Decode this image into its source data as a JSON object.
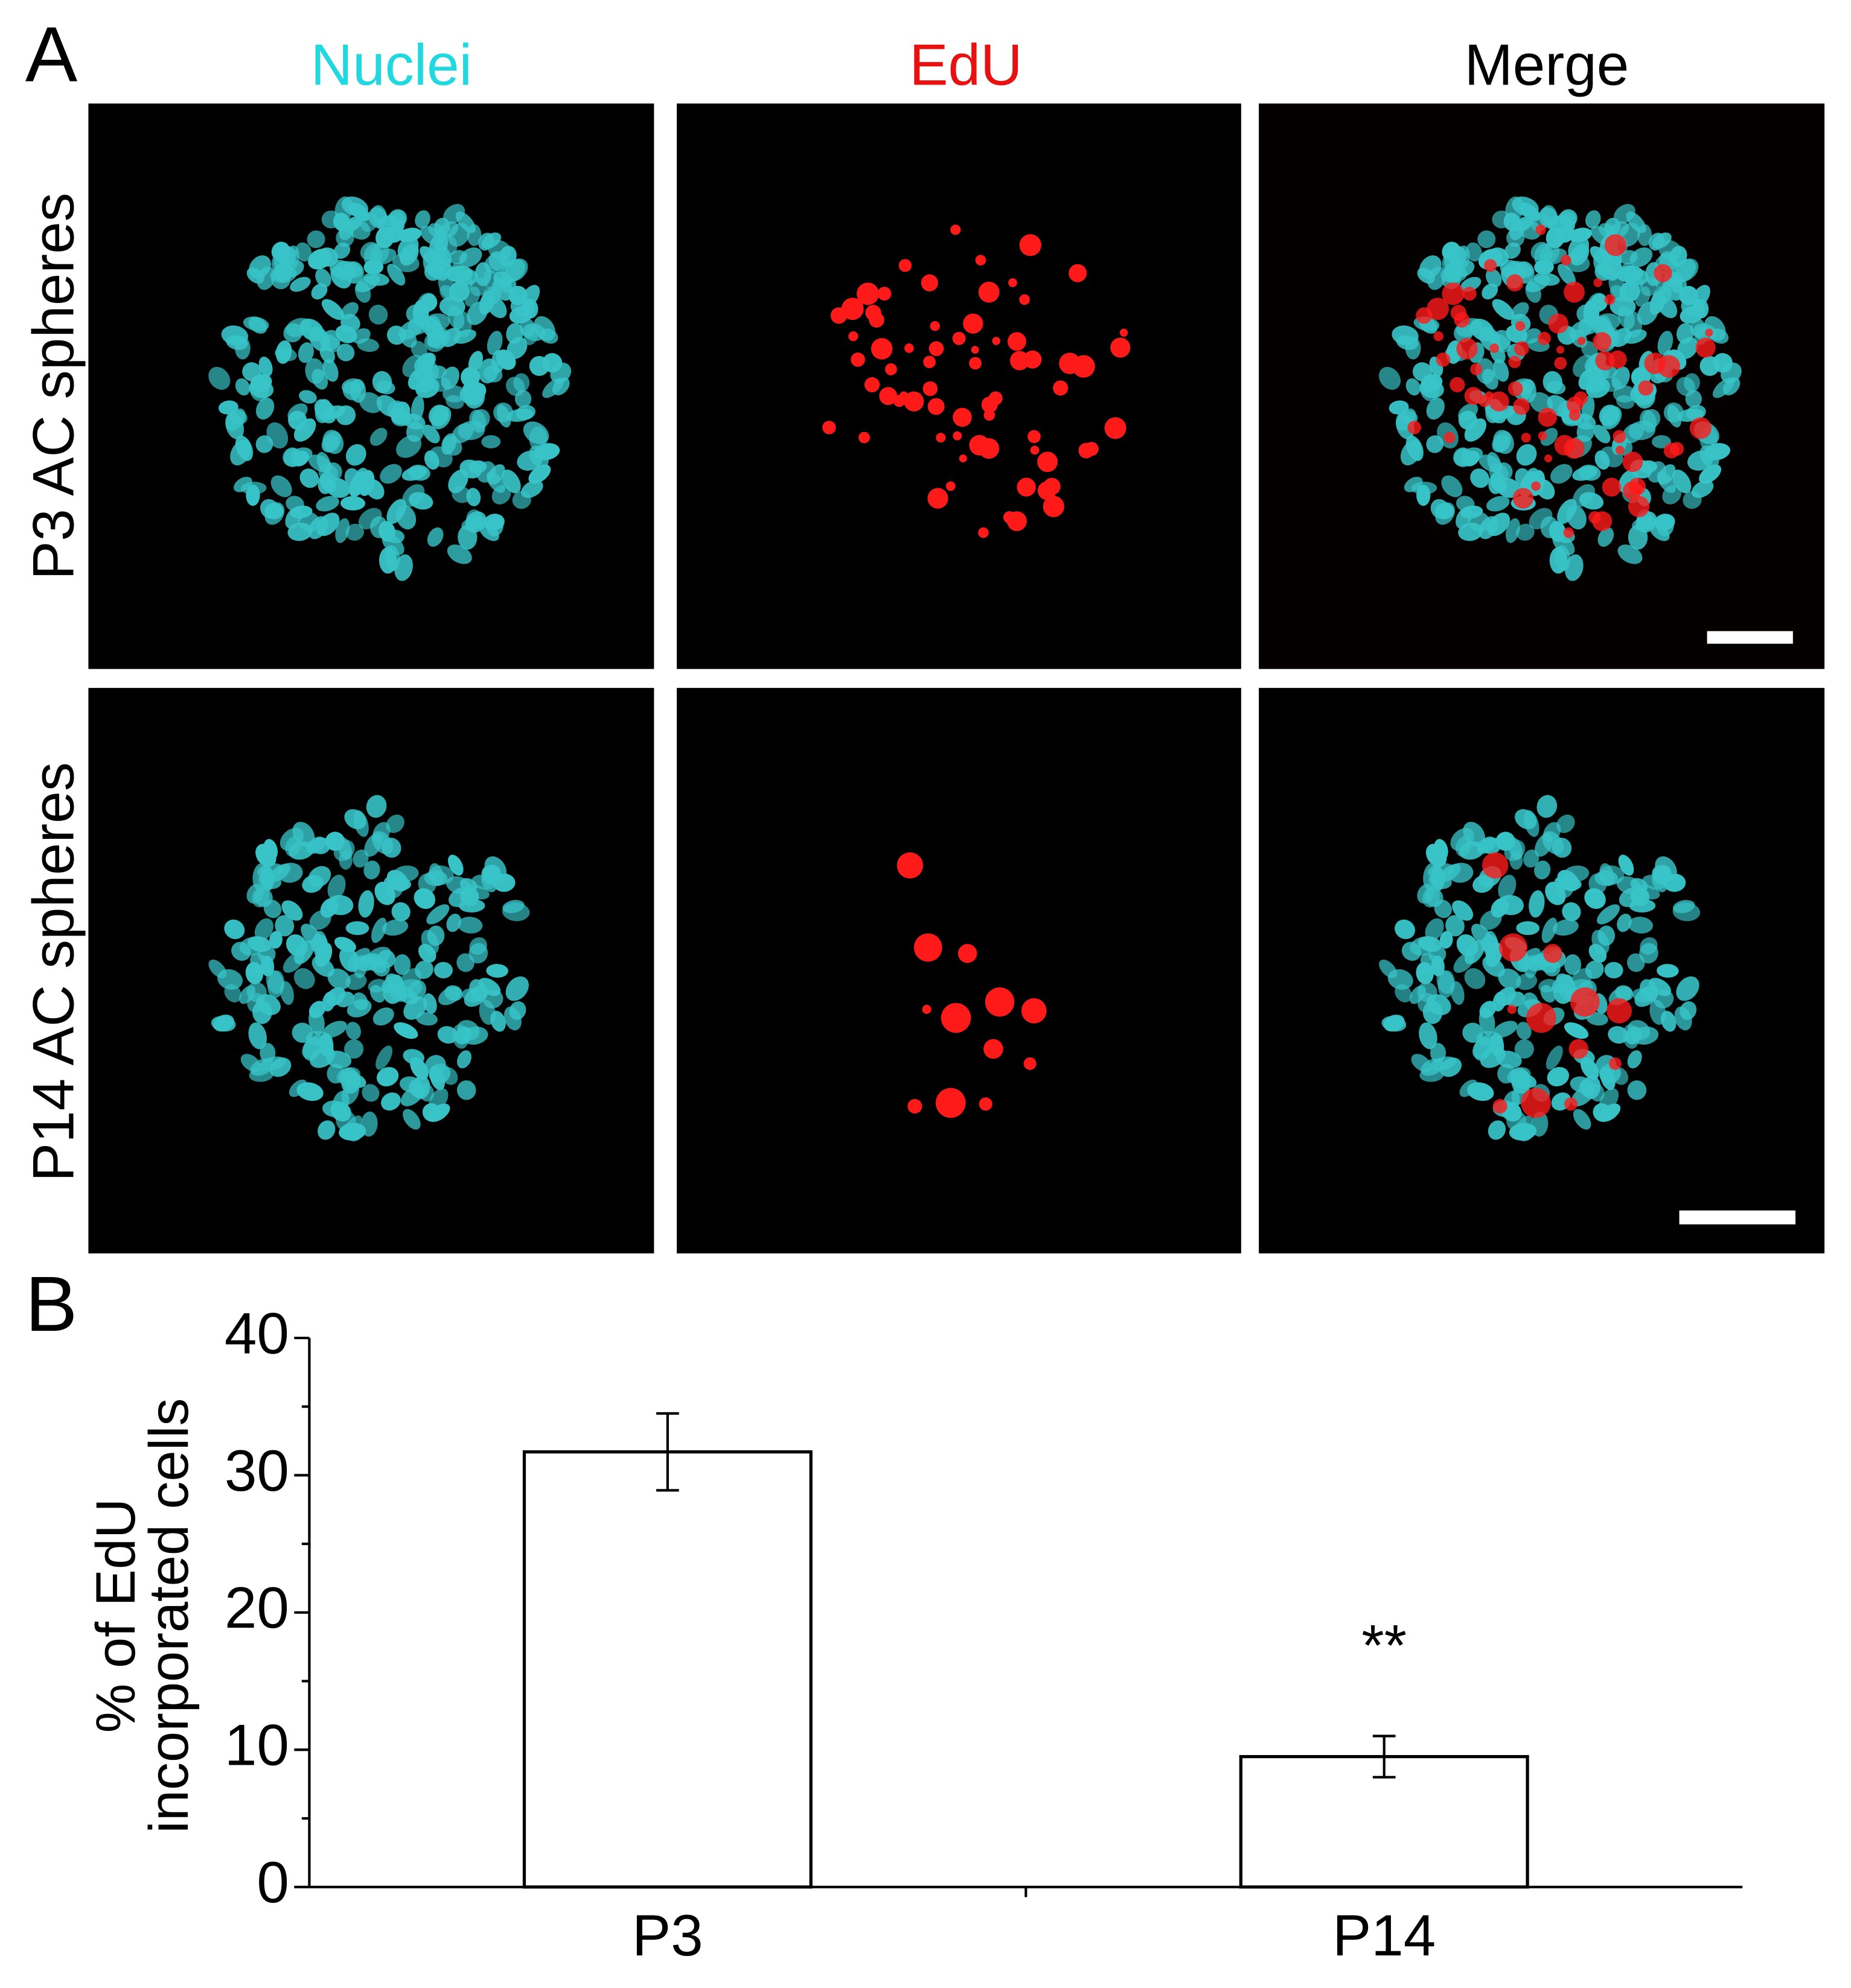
{
  "panel_a": {
    "label": "A",
    "column_titles": [
      "Nuclei",
      "EdU",
      "Merge"
    ],
    "row_labels": [
      "P3 AC spheres",
      "P14 AC spheres"
    ]
  },
  "chart_data": {
    "type": "bar",
    "panel_label": "B",
    "ylabel": [
      "% of EdU",
      "incorporated cells"
    ],
    "categories": [
      "P3",
      "P14"
    ],
    "values": [
      31.7,
      9.5
    ],
    "errors": [
      2.8,
      1.5
    ],
    "significance": [
      null,
      "**"
    ],
    "color": "#ffffff",
    "edgecolor": "#000000",
    "ylim": [
      0,
      40
    ],
    "yticks": [
      0,
      10,
      20,
      30,
      40
    ],
    "yminorticks": [
      5,
      15,
      25,
      35
    ],
    "grid": false
  }
}
